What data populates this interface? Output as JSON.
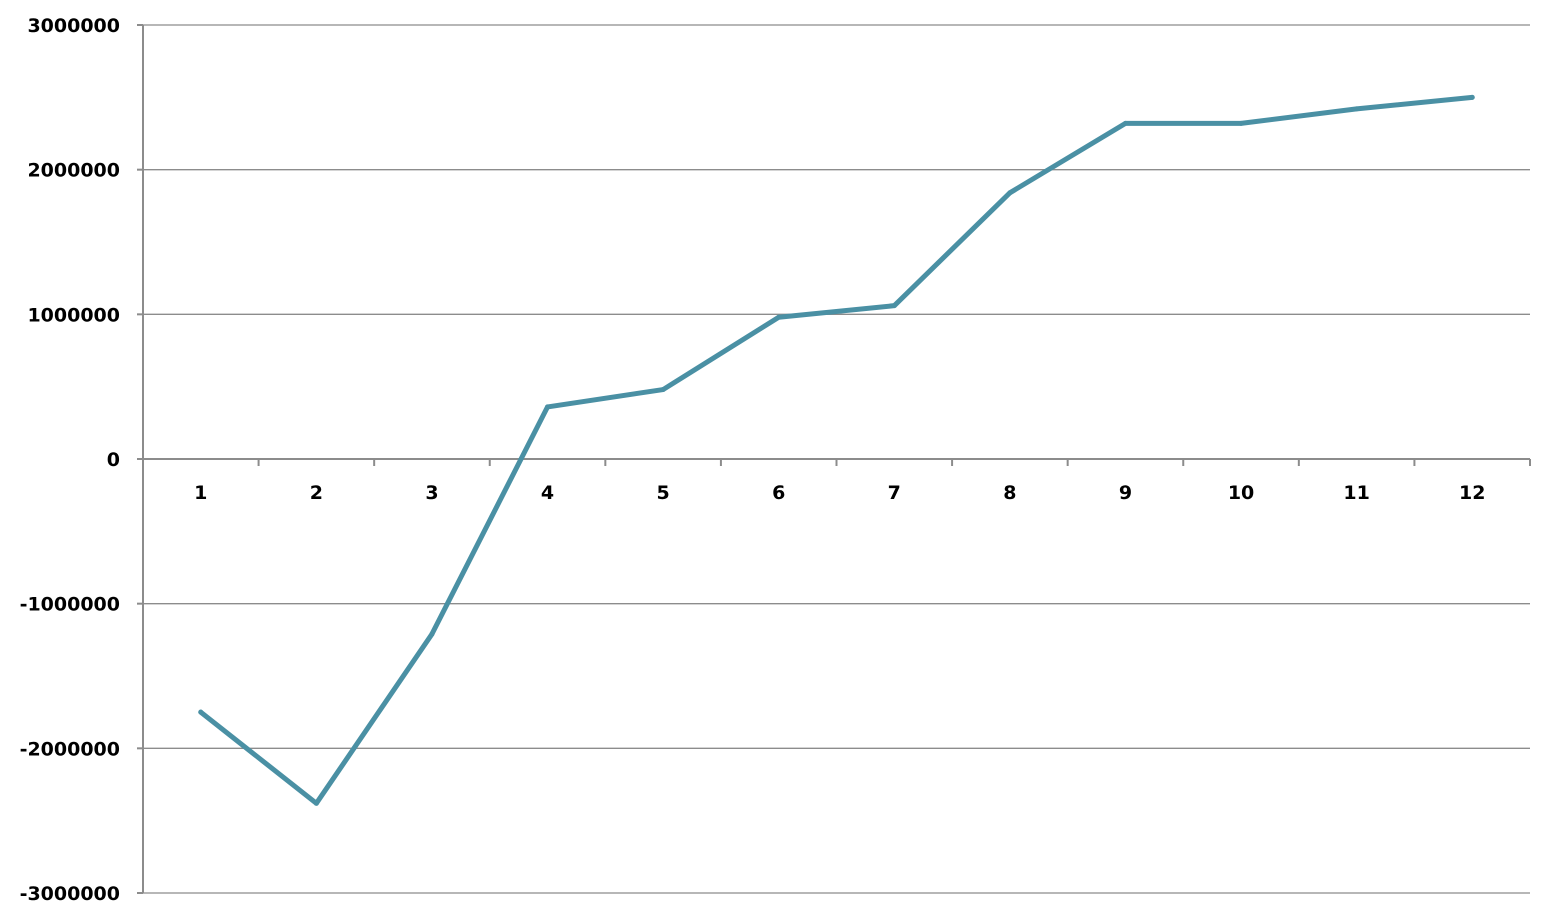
{
  "chart_data": {
    "type": "line",
    "title": "",
    "xlabel": "",
    "ylabel": "",
    "categories": [
      "1",
      "2",
      "3",
      "4",
      "5",
      "6",
      "7",
      "8",
      "9",
      "10",
      "11",
      "12"
    ],
    "series": [
      {
        "values": [
          -1750000,
          -2380000,
          -1210000,
          360000,
          480000,
          980000,
          1060000,
          1840000,
          2320000,
          2320000,
          2420000,
          2500000
        ]
      }
    ],
    "ylim": [
      -3000000,
      3000000
    ],
    "yticks": [
      "3000000",
      "2000000",
      "1000000",
      "0",
      "-1000000",
      "-2000000",
      "-3000000"
    ],
    "ytick_values": [
      3000000,
      2000000,
      1000000,
      0,
      -1000000,
      -2000000,
      -3000000
    ],
    "grid": "horizontal",
    "legend": "none",
    "colors": {
      "line": "#4A90A4",
      "grid": "#8c8c8c",
      "axis": "#8c8c8c"
    }
  }
}
